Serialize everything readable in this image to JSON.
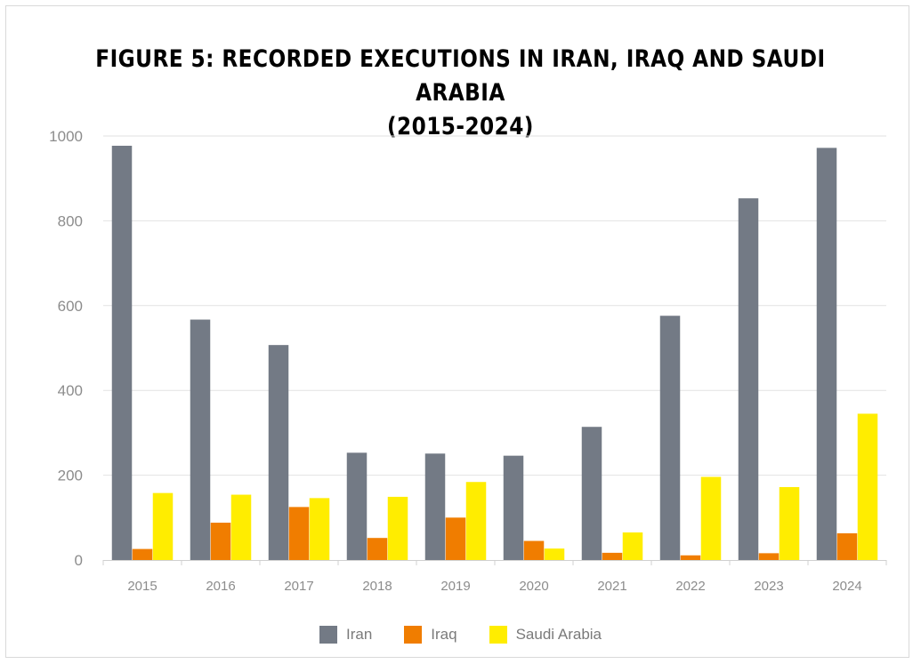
{
  "chart_data": {
    "type": "bar",
    "title_line1": "FIGURE 5: RECORDED EXECUTIONS IN IRAN, IRAQ AND SAUDI ARABIA",
    "title_line2": "(2015-2024)",
    "categories": [
      "2015",
      "2016",
      "2017",
      "2018",
      "2019",
      "2020",
      "2021",
      "2022",
      "2023",
      "2024"
    ],
    "series": [
      {
        "name": "Iran",
        "color": "#737a85",
        "values": [
          977,
          567,
          507,
          253,
          251,
          246,
          314,
          576,
          853,
          972
        ]
      },
      {
        "name": "Iraq",
        "color": "#f07d00",
        "values": [
          26,
          88,
          125,
          52,
          100,
          45,
          17,
          11,
          16,
          63
        ]
      },
      {
        "name": "Saudi Arabia",
        "color": "#ffed00",
        "values": [
          158,
          154,
          146,
          149,
          184,
          27,
          65,
          196,
          172,
          345
        ]
      }
    ],
    "ylim": [
      0,
      1000
    ],
    "yticks": [
      "0",
      "200",
      "400",
      "600",
      "800",
      "1000"
    ],
    "grid": true,
    "legend_position": "bottom"
  }
}
